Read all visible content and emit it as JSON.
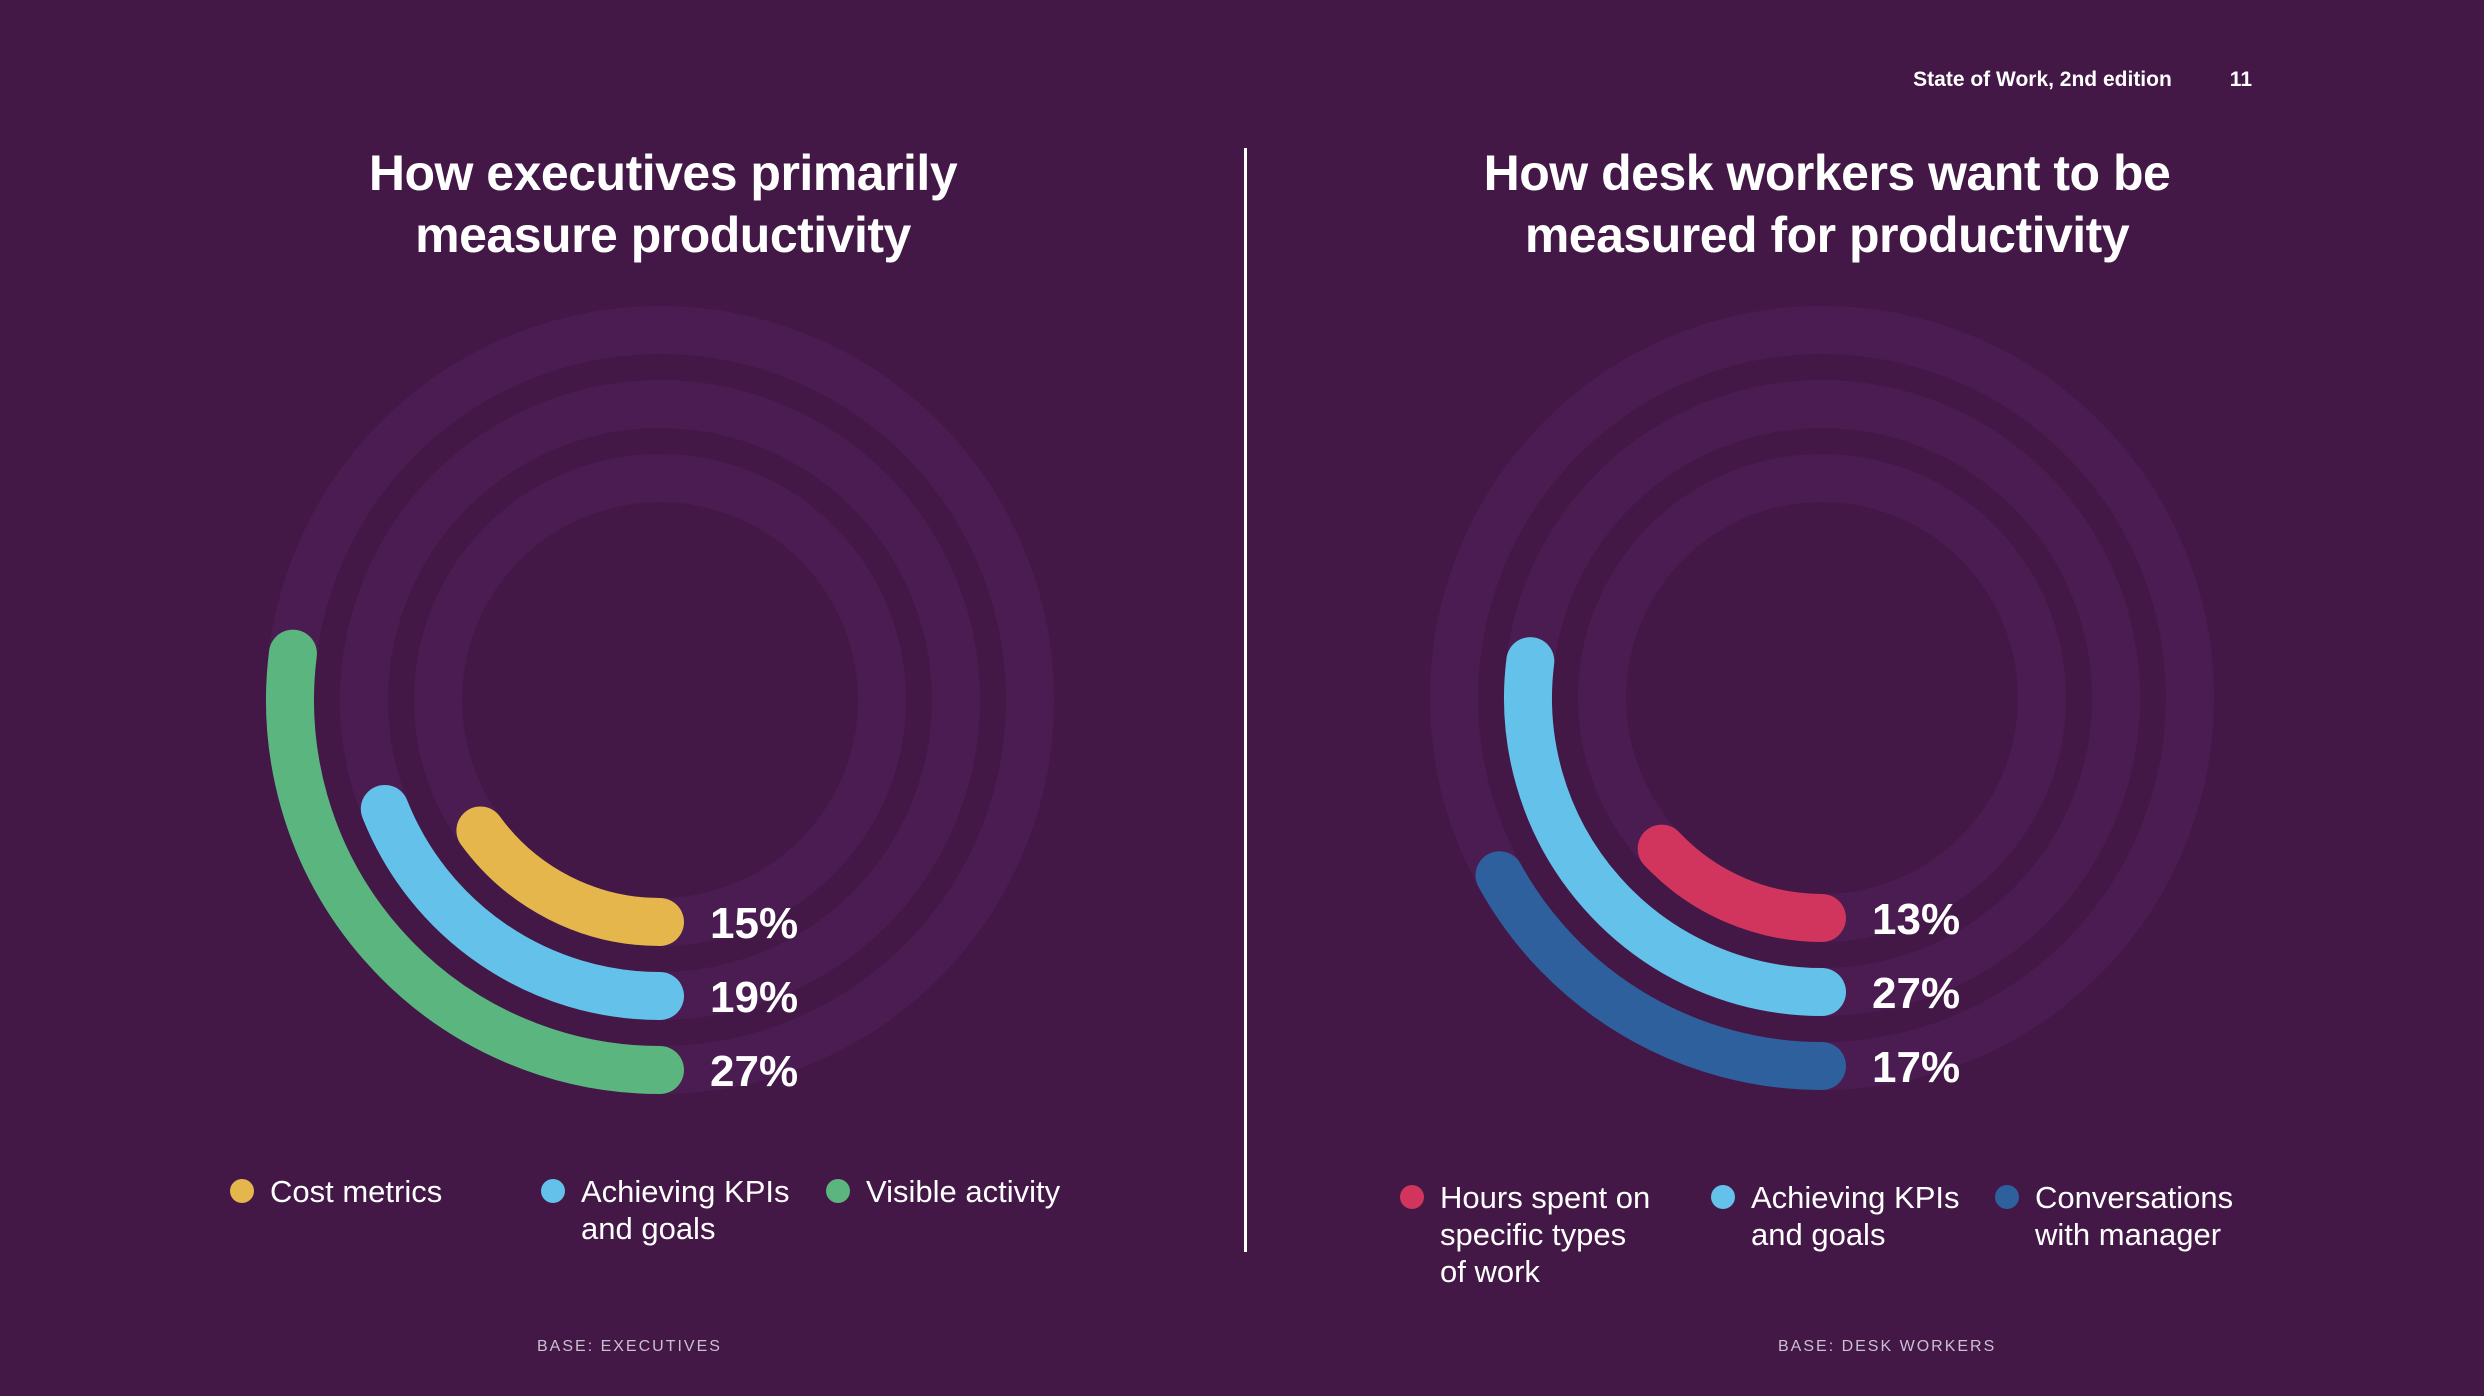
{
  "header": {
    "publication": "State of Work, 2nd edition",
    "page_number": "11"
  },
  "chart_data": [
    {
      "type": "radial-bar",
      "title": "How executives primarily\nmeasure productivity",
      "series": [
        {
          "name": "Cost metrics",
          "value": 15,
          "label": "15%",
          "color": "#E5B64B"
        },
        {
          "name": "Achieving KPIs\nand goals",
          "value": 19,
          "label": "19%",
          "color": "#64C1EA"
        },
        {
          "name": "Visible activity",
          "value": 27,
          "label": "27%",
          "color": "#5BB57F"
        }
      ],
      "base": "BASE: EXECUTIVES"
    },
    {
      "type": "radial-bar",
      "title": "How desk workers want to be\nmeasured for productivity",
      "series": [
        {
          "name": "Hours spent on\nspecific types\nof work",
          "value": 13,
          "label": "13%",
          "color": "#D1355D"
        },
        {
          "name": "Achieving KPIs\nand goals",
          "value": 27,
          "label": "27%",
          "color": "#64C1EA"
        },
        {
          "name": "Conversations\nwith manager",
          "value": 17,
          "label": "17%",
          "color": "#2E609E"
        }
      ],
      "base": "BASE: DESK WORKERS"
    }
  ],
  "colors": {
    "background": "#431847",
    "track": "#4B1C51",
    "text": "#FFFFFF"
  }
}
